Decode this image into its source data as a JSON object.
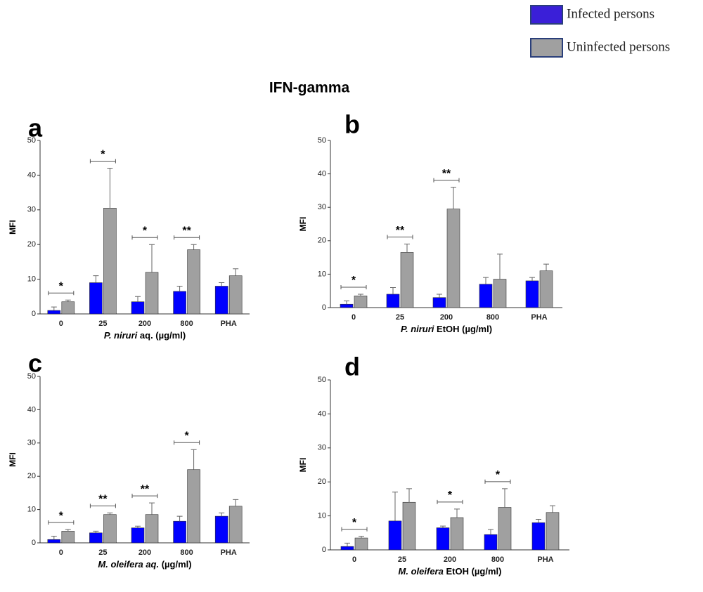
{
  "title": "IFN-gamma",
  "legend": [
    {
      "name": "Infected persons",
      "color": "#3a1fd8"
    },
    {
      "name": "Uninfected persons",
      "color": "#a0a0a0"
    }
  ],
  "chart_data": [
    {
      "type": "bar",
      "panel": "a",
      "ylabel": "MFI",
      "xlabel": {
        "italic": "P. niruri",
        "rest": " aq. (µg/ml)"
      },
      "categories": [
        "0",
        "25",
        "200",
        "800",
        "PHA"
      ],
      "ylim": [
        0,
        50
      ],
      "yticks": [
        0,
        10,
        20,
        30,
        40,
        50
      ],
      "series": [
        {
          "color": "#0000ff",
          "values": [
            1,
            9,
            3.5,
            6.5,
            8
          ],
          "errors": [
            1,
            2,
            1.5,
            1.5,
            1
          ]
        },
        {
          "color": "#a0a0a0",
          "values": [
            3.5,
            30.5,
            12,
            18.5,
            11
          ],
          "errors": [
            0.5,
            11.5,
            8,
            1.5,
            2
          ]
        }
      ],
      "significance": [
        "*",
        "*",
        "*",
        "**",
        null
      ]
    },
    {
      "type": "bar",
      "panel": "b",
      "ylabel": "MFI",
      "xlabel": {
        "italic": "P. niruri",
        "rest": " EtOH (µg/ml)"
      },
      "categories": [
        "0",
        "25",
        "200",
        "800",
        "PHA"
      ],
      "ylim": [
        0,
        50
      ],
      "yticks": [
        0,
        10,
        20,
        30,
        40,
        50
      ],
      "series": [
        {
          "color": "#0000ff",
          "values": [
            1,
            4,
            3,
            7,
            8
          ],
          "errors": [
            1,
            2,
            1,
            2,
            1
          ]
        },
        {
          "color": "#a0a0a0",
          "values": [
            3.5,
            16.5,
            29.5,
            8.5,
            11
          ],
          "errors": [
            0.5,
            2.5,
            6.5,
            7.5,
            2
          ]
        }
      ],
      "significance": [
        "*",
        "**",
        "**",
        null,
        null
      ]
    },
    {
      "type": "bar",
      "panel": "c",
      "ylabel": "MFI",
      "xlabel": {
        "italic": "M. oleifera aq.",
        "rest": " (µg/ml)"
      },
      "categories": [
        "0",
        "25",
        "200",
        "800",
        "PHA"
      ],
      "ylim": [
        0,
        50
      ],
      "yticks": [
        0,
        10,
        20,
        30,
        40,
        50
      ],
      "series": [
        {
          "color": "#0000ff",
          "values": [
            1,
            3,
            4.5,
            6.5,
            8
          ],
          "errors": [
            1,
            0.5,
            0.5,
            1.5,
            1
          ]
        },
        {
          "color": "#a0a0a0",
          "values": [
            3.5,
            8.5,
            8.5,
            22,
            11
          ],
          "errors": [
            0.5,
            0.5,
            3.5,
            6,
            2
          ]
        }
      ],
      "significance": [
        "*",
        "**",
        "**",
        "*",
        null
      ]
    },
    {
      "type": "bar",
      "panel": "d",
      "ylabel": "MFI",
      "xlabel": {
        "italic": "M. oleifera",
        "rest": " EtOH (µg/ml)"
      },
      "categories": [
        "0",
        "25",
        "200",
        "800",
        "PHA"
      ],
      "ylim": [
        0,
        50
      ],
      "yticks": [
        0,
        10,
        20,
        30,
        40,
        50
      ],
      "series": [
        {
          "color": "#0000ff",
          "values": [
            1,
            8.5,
            6.5,
            4.5,
            8
          ],
          "errors": [
            1,
            8.5,
            0.5,
            1.5,
            1
          ]
        },
        {
          "color": "#a0a0a0",
          "values": [
            3.5,
            14,
            9.5,
            12.5,
            11
          ],
          "errors": [
            0.5,
            4,
            2.5,
            5.5,
            2
          ]
        }
      ],
      "significance": [
        "*",
        null,
        "*",
        "*",
        null
      ]
    }
  ]
}
